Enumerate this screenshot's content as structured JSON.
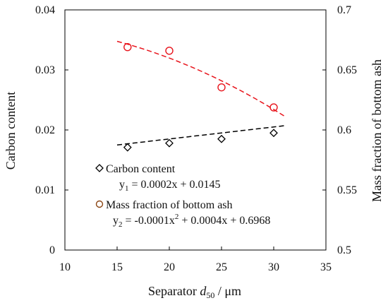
{
  "chart_data": {
    "type": "scatter",
    "x_axis": {
      "label_prefix": "Separator ",
      "label_symbol": "d",
      "label_subscript": "50",
      "label_suffix": " / μm",
      "range": [
        10,
        35
      ],
      "ticks": [
        "10",
        "15",
        "20",
        "25",
        "30",
        "35"
      ]
    },
    "y_axis_left": {
      "label": "Carbon content",
      "range": [
        0,
        0.04
      ],
      "ticks": [
        "0",
        "0.01",
        "0.02",
        "0.03",
        "0.04"
      ]
    },
    "y_axis_right": {
      "label": "Mass fraction of bottom ash",
      "range": [
        0.5,
        0.7
      ],
      "ticks": [
        "0.5",
        "0.55",
        "0.6",
        "0.65",
        "0.7"
      ]
    },
    "series": [
      {
        "name": "Carbon content",
        "axis": "left",
        "marker": "diamond",
        "color": "#000000",
        "x": [
          16,
          20,
          25,
          30
        ],
        "y": [
          0.0171,
          0.0178,
          0.0185,
          0.0195
        ],
        "fit": {
          "type": "linear",
          "a": 0.0002,
          "b": 0.0145,
          "x_range": [
            15,
            31
          ],
          "color": "#000000",
          "equation": {
            "y_main": "y",
            "y_sub": "1",
            "text": " = 0.0002x + 0.0145"
          }
        }
      },
      {
        "name": "Mass fraction of bottom ash",
        "axis": "right",
        "marker": "circle",
        "color": "#e8141c",
        "legend_marker_color": "#8b4513",
        "x": [
          16,
          20,
          25,
          30
        ],
        "y": [
          0.669,
          0.666,
          0.6355,
          0.6188
        ],
        "fit": {
          "type": "quadratic",
          "a": -0.0001,
          "b": 0.0004,
          "c": 0.6968,
          "x_range": [
            15,
            31
          ],
          "color": "#e8141c",
          "equation": {
            "y_main": "y",
            "y_sub": "2",
            "eq_a": " = -0.0001x",
            "sup": "2",
            "eq_b": " + 0.0004x + 0.6968"
          }
        }
      }
    ],
    "grid": false,
    "legend_position": "inside-bottom-left"
  }
}
